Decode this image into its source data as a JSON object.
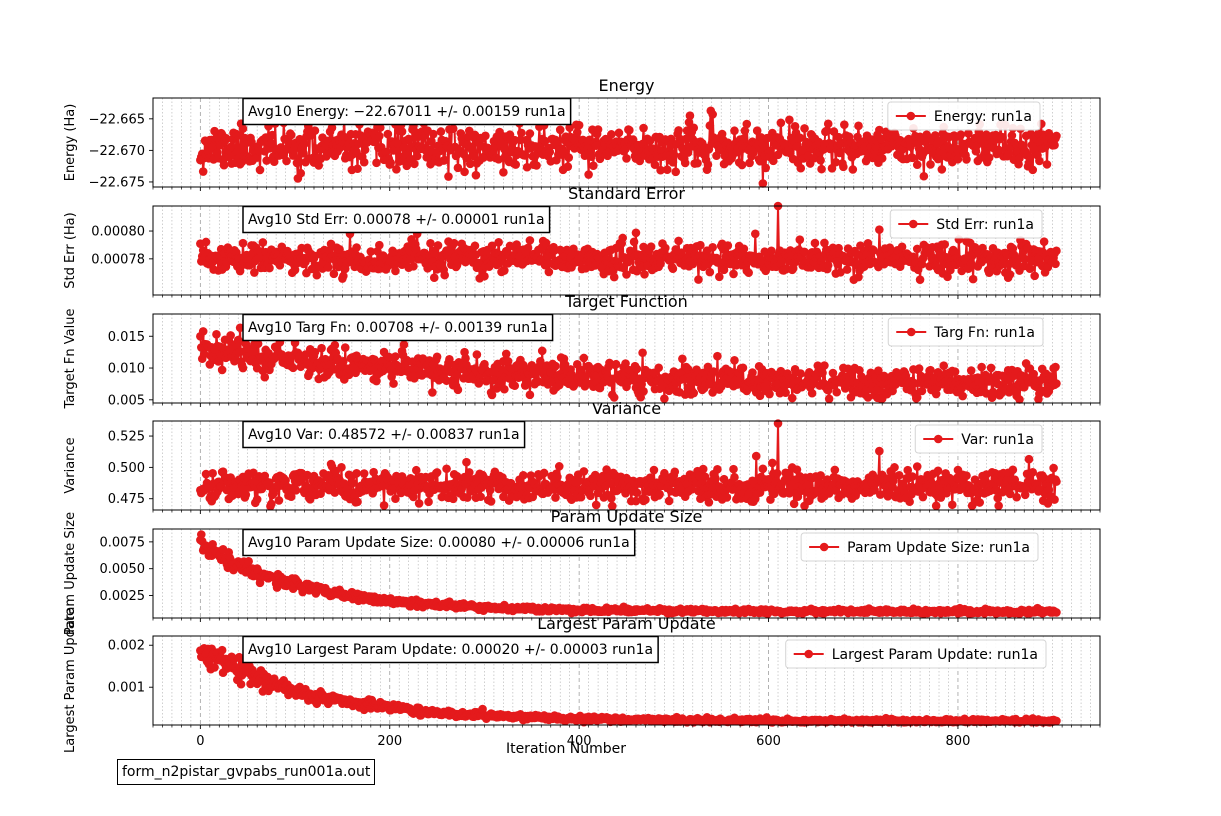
{
  "footer_label": "form_n2pistar_gvpabs_run001a.out",
  "line_color": "#e41a1c",
  "chart_data": {
    "type": "line",
    "shared_x": {
      "label": "Iteration Number",
      "lim": [
        -50,
        950
      ],
      "major_ticks": [
        0,
        200,
        400,
        600,
        800
      ],
      "minor_step": 10,
      "n_points": 905
    },
    "panels": [
      {
        "key": "energy",
        "title": "Energy",
        "ylabel": "Energy (Ha)",
        "ylim": [
          -22.6758,
          -22.6617
        ],
        "yticks": [
          -22.665,
          -22.67,
          -22.675
        ],
        "ytick_labels": [
          "−22.665",
          "−22.670",
          "−22.675"
        ],
        "annotation": "Avg10 Energy: −22.67011 +/- 0.00159  run1a",
        "legend": "Energy: run1a",
        "series": {
          "name": "Energy: run1a",
          "gen": {
            "type": "noise",
            "mean": -22.6696,
            "sd": 0.0017,
            "min": -22.6753,
            "max": -22.663,
            "seed": 11
          }
        }
      },
      {
        "key": "stderr",
        "title": "Standard Error",
        "ylabel": "Std Err (Ha)",
        "ylim": [
          0.000754,
          0.000818
        ],
        "yticks": [
          0.00078,
          0.0008
        ],
        "ytick_labels": [
          "0.00078",
          "0.00080"
        ],
        "annotation": "Avg10 Std Err: 0.00078 +/- 0.00001  run1a",
        "legend": "Std Err: run1a",
        "series": {
          "name": "Std Err: run1a",
          "gen": {
            "type": "noise",
            "mean": 0.00078,
            "sd": 5.5e-06,
            "min": 0.000765,
            "max": 0.0008,
            "seed": 23,
            "spikes": [
              [
                610,
                0.000818
              ],
              [
                717,
                0.000801
              ],
              [
                158,
                0.000798
              ],
              [
                586,
                0.000798
              ]
            ]
          }
        }
      },
      {
        "key": "targfn",
        "title": "Target Function",
        "ylabel": "Target Fn Value",
        "ylim": [
          0.0045,
          0.0185
        ],
        "yticks": [
          0.005,
          0.01,
          0.015
        ],
        "ytick_labels": [
          "0.005",
          "0.010",
          "0.015"
        ],
        "annotation": "Avg10 Targ Fn: 0.00708 +/- 0.00139  run1a",
        "legend": "Targ Fn: run1a",
        "series": {
          "name": "Targ Fn: run1a",
          "gen": {
            "type": "decay_noise",
            "start": 0.0135,
            "end": 0.0075,
            "tau": 250,
            "sd": 0.0013,
            "min": 0.005,
            "max": 0.0178,
            "seed": 37
          }
        }
      },
      {
        "key": "variance",
        "title": "Variance",
        "ylabel": "Variance",
        "ylim": [
          0.466,
          0.537
        ],
        "yticks": [
          0.475,
          0.5,
          0.525
        ],
        "ytick_labels": [
          "0.475",
          "0.500",
          "0.525"
        ],
        "annotation": "Avg10 Var: 0.48572 +/- 0.00837  run1a",
        "legend": "Var: run1a",
        "series": {
          "name": "Var: run1a",
          "gen": {
            "type": "noise",
            "mean": 0.4855,
            "sd": 0.0065,
            "min": 0.469,
            "max": 0.507,
            "seed": 41,
            "spikes": [
              [
                610,
                0.535
              ],
              [
                717,
                0.513
              ],
              [
                587,
                0.509
              ]
            ]
          }
        }
      },
      {
        "key": "paramsize",
        "title": "Param Update Size",
        "ylabel": "Param Update Size",
        "ylim": [
          0.0004,
          0.0087
        ],
        "yticks": [
          0.0025,
          0.005,
          0.0075
        ],
        "ytick_labels": [
          "0.0025",
          "0.0050",
          "0.0075"
        ],
        "annotation": "Avg10 Param Update Size: 0.00080 +/- 0.00006  run1a",
        "legend": "Param Update Size: run1a",
        "series": {
          "name": "Param Update Size: run1a",
          "gen": {
            "type": "decay_noise",
            "start": 0.0072,
            "end": 0.001,
            "tau": 110,
            "sd": 0.00012,
            "rel_sd": 0.06,
            "min": 0.0008,
            "max": 0.0082,
            "seed": 53
          }
        }
      },
      {
        "key": "largest",
        "title": "Largest Param Update",
        "ylabel": "Largest Param Update",
        "ylim": [
          0.0001,
          0.00222
        ],
        "yticks": [
          0.001,
          0.002
        ],
        "ytick_labels": [
          "0.001",
          "0.002"
        ],
        "annotation": "Avg10 Largest Param Update: 0.00020 +/- 0.00003  run1a",
        "legend": "Largest Param Update: run1a",
        "series": {
          "name": "Largest Param Update: run1a",
          "gen": {
            "type": "decay_noise",
            "start": 0.0019,
            "end": 0.00019,
            "tau": 120,
            "sd": 3e-05,
            "rel_sd": 0.08,
            "min": 0.00016,
            "max": 0.00212,
            "seed": 67
          }
        }
      }
    ]
  }
}
